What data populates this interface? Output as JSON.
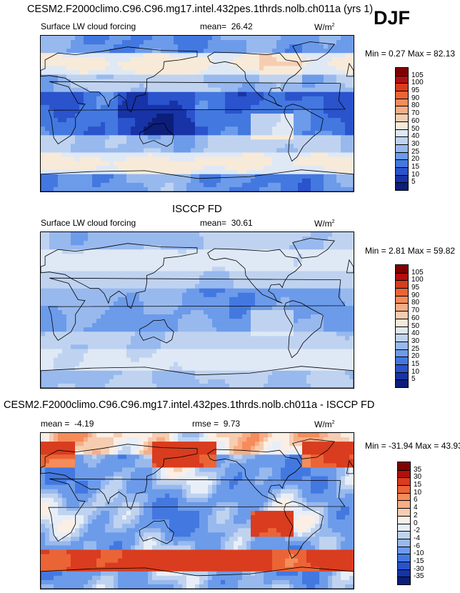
{
  "header": {
    "title": "CESM2.F2000climo.C96.C96.mg17.intel.432pes.1thrds.nolb.ch011a (yrs 1)",
    "season": "DJF"
  },
  "panel1": {
    "subtitle": "Surface LW cloud forcing",
    "mean_label": "mean=",
    "mean_value": "26.42",
    "units_base": "W/m",
    "units_exp": "2",
    "minmax": "Min =   0.27 Max =  82.13"
  },
  "panel2": {
    "title": "ISCCP FD",
    "subtitle": "Surface LW cloud forcing",
    "mean_label": "mean=",
    "mean_value": "30.61",
    "units_base": "W/m",
    "units_exp": "2",
    "minmax": "Min =   2.81 Max =  59.82"
  },
  "panel3": {
    "title": "CESM2.F2000climo.C96.C96.mg17.intel.432pes.1thrds.nolb.ch011a - ISCCP FD",
    "mean_label": "mean =",
    "mean_value": "-4.19",
    "rmse_label": "rmse =",
    "rmse_value": "9.73",
    "units_base": "W/m",
    "units_exp": "2",
    "minmax": "Min = -31.94 Max =  43.93"
  },
  "chart_data": [
    {
      "type": "heatmap",
      "title": "Surface LW cloud forcing",
      "units": "W/m2",
      "mean": 26.42,
      "min": 0.27,
      "max": 82.13,
      "colorbar_levels": [
        "105",
        "100",
        "95",
        "90",
        "80",
        "70",
        "60",
        "50",
        "40",
        "30",
        "25",
        "20",
        "15",
        "10",
        "5"
      ],
      "colorbar_colors": [
        "#800000",
        "#b30f0f",
        "#d93c1e",
        "#eb6436",
        "#f58c5a",
        "#f7ad86",
        "#f6cdb0",
        "#f8ead8",
        "#dfe8f5",
        "#bfd3f0",
        "#98b9ee",
        "#6c9bea",
        "#4378e0",
        "#2a53cc",
        "#1733a6",
        "#0c1e7a"
      ]
    },
    {
      "type": "heatmap",
      "title": "Surface LW cloud forcing",
      "units": "W/m2",
      "mean": 30.61,
      "min": 2.81,
      "max": 59.82,
      "colorbar_levels": [
        "105",
        "100",
        "95",
        "90",
        "80",
        "70",
        "60",
        "50",
        "40",
        "30",
        "25",
        "20",
        "15",
        "10",
        "5"
      ],
      "colorbar_colors": [
        "#800000",
        "#b30f0f",
        "#d93c1e",
        "#eb6436",
        "#f58c5a",
        "#f7ad86",
        "#f6cdb0",
        "#f8ead8",
        "#dfe8f5",
        "#bfd3f0",
        "#98b9ee",
        "#6c9bea",
        "#4378e0",
        "#2a53cc",
        "#1733a6",
        "#0c1e7a"
      ]
    },
    {
      "type": "heatmap",
      "title": "CESM2.F2000climo.C96.C96.mg17.intel.432pes.1thrds.nolb.ch011a - ISCCP FD",
      "units": "W/m2",
      "mean": -4.19,
      "rmse": 9.73,
      "min": -31.94,
      "max": 43.93,
      "colorbar_levels": [
        "35",
        "30",
        "15",
        "10",
        "6",
        "4",
        "2",
        "0",
        "-2",
        "-4",
        "-6",
        "-10",
        "-15",
        "-30",
        "-35"
      ],
      "colorbar_colors": [
        "#800000",
        "#b30f0f",
        "#d93c1e",
        "#eb6436",
        "#f58c5a",
        "#f7ad86",
        "#f6cdb0",
        "#fbeee4",
        "#e8eef8",
        "#bfd3f0",
        "#98b9ee",
        "#6c9bea",
        "#4378e0",
        "#2a53cc",
        "#1733a6",
        "#0c1e7a"
      ]
    }
  ]
}
